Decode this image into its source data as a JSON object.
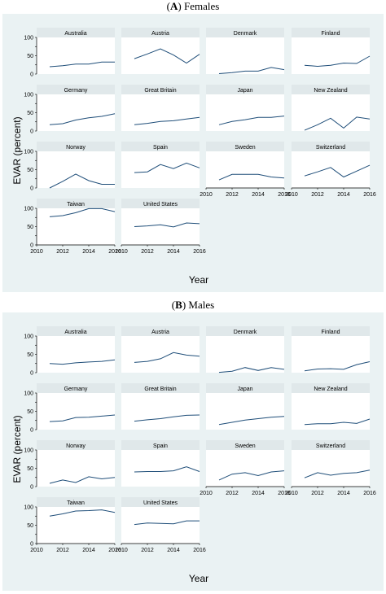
{
  "chart_data": [
    {
      "type": "line",
      "panel_label": "A",
      "panel_title": "Females",
      "xlabel": "Year",
      "ylabel": "EVAR (percent)",
      "ylim": [
        0,
        100
      ],
      "yticks": [
        0,
        50,
        100
      ],
      "yticks_minor": [
        0,
        25,
        50,
        75,
        100
      ],
      "xlim": [
        2010,
        2016
      ],
      "xticks": [
        2010,
        2012,
        2014,
        2016
      ],
      "grid": false,
      "legend": "none",
      "x": [
        2011,
        2012,
        2013,
        2014,
        2015,
        2016
      ],
      "series": [
        {
          "name": "Australia",
          "values": [
            20,
            23,
            27,
            27,
            33,
            33
          ]
        },
        {
          "name": "Austria",
          "values": [
            42,
            55,
            69,
            52,
            30,
            54
          ]
        },
        {
          "name": "Denmark",
          "values": [
            1,
            4,
            8,
            8,
            18,
            12
          ]
        },
        {
          "name": "Finland",
          "values": [
            24,
            21,
            24,
            30,
            29,
            49
          ]
        },
        {
          "name": "Germany",
          "values": [
            17,
            20,
            30,
            36,
            40,
            47
          ]
        },
        {
          "name": "Great Britain",
          "values": [
            17,
            21,
            26,
            28,
            33,
            37
          ]
        },
        {
          "name": "Japan",
          "values": [
            17,
            26,
            31,
            37,
            37,
            41
          ]
        },
        {
          "name": "New Zealand",
          "values": [
            2,
            17,
            35,
            8,
            38,
            33
          ]
        },
        {
          "name": "Norway",
          "values": [
            0,
            18,
            38,
            20,
            10,
            10
          ]
        },
        {
          "name": "Spain",
          "values": [
            42,
            44,
            64,
            53,
            68,
            55
          ]
        },
        {
          "name": "Sweden",
          "values": [
            22,
            37,
            37,
            37,
            30,
            27
          ]
        },
        {
          "name": "Switzerland",
          "values": [
            33,
            44,
            56,
            30,
            46,
            62
          ]
        },
        {
          "name": "Taiwan",
          "values": [
            77,
            80,
            88,
            99,
            99,
            91
          ]
        },
        {
          "name": "United States",
          "values": [
            50,
            52,
            55,
            49,
            60,
            58
          ]
        }
      ]
    },
    {
      "type": "line",
      "panel_label": "B",
      "panel_title": "Males",
      "xlabel": "Year",
      "ylabel": "EVAR (percent)",
      "ylim": [
        0,
        100
      ],
      "yticks": [
        0,
        50,
        100
      ],
      "yticks_minor": [
        0,
        25,
        50,
        75,
        100
      ],
      "xlim": [
        2010,
        2016
      ],
      "xticks": [
        2010,
        2012,
        2014,
        2016
      ],
      "grid": false,
      "legend": "none",
      "x": [
        2011,
        2012,
        2013,
        2014,
        2015,
        2016
      ],
      "series": [
        {
          "name": "Australia",
          "values": [
            25,
            23,
            27,
            29,
            31,
            35
          ]
        },
        {
          "name": "Austria",
          "values": [
            28,
            31,
            38,
            55,
            48,
            45
          ]
        },
        {
          "name": "Denmark",
          "values": [
            1,
            4,
            14,
            6,
            14,
            9
          ]
        },
        {
          "name": "Finland",
          "values": [
            5,
            10,
            11,
            9,
            22,
            30
          ]
        },
        {
          "name": "Germany",
          "values": [
            22,
            24,
            33,
            34,
            37,
            40
          ]
        },
        {
          "name": "Great Britain",
          "values": [
            23,
            27,
            30,
            35,
            39,
            40
          ]
        },
        {
          "name": "Japan",
          "values": [
            14,
            20,
            26,
            30,
            34,
            36
          ]
        },
        {
          "name": "New Zealand",
          "values": [
            14,
            16,
            16,
            20,
            17,
            29
          ]
        },
        {
          "name": "Norway",
          "values": [
            9,
            18,
            11,
            27,
            21,
            25
          ]
        },
        {
          "name": "Spain",
          "values": [
            40,
            41,
            41,
            43,
            54,
            41
          ]
        },
        {
          "name": "Sweden",
          "values": [
            18,
            34,
            38,
            30,
            40,
            43
          ]
        },
        {
          "name": "Switzerland",
          "values": [
            24,
            38,
            31,
            36,
            38,
            45
          ]
        },
        {
          "name": "Taiwan",
          "values": [
            75,
            81,
            89,
            90,
            92,
            85
          ]
        },
        {
          "name": "United States",
          "values": [
            52,
            56,
            55,
            54,
            62,
            62
          ]
        }
      ]
    }
  ],
  "colors": {
    "figure_bg": "#ffffff",
    "panel_bg": "#eaf2f3",
    "plot_bg": "#ffffff",
    "strip_bg": "#e0e8ea",
    "line": "#1f4e79",
    "axis": "#000000",
    "text": "#000000"
  }
}
